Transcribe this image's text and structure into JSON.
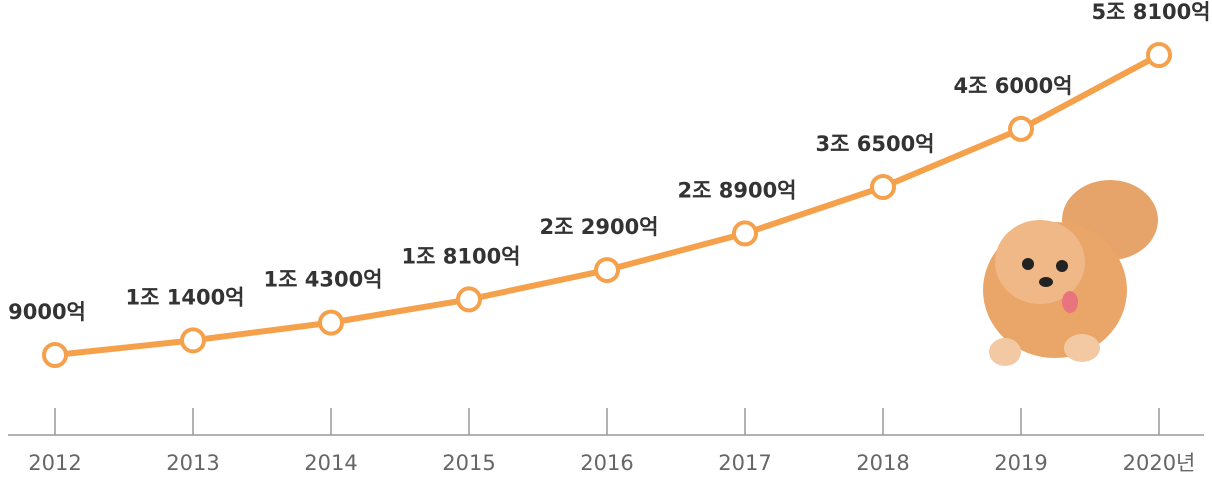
{
  "chart_data": {
    "type": "line",
    "categories": [
      "2012",
      "2013",
      "2014",
      "2015",
      "2016",
      "2017",
      "2018",
      "2019",
      "2020년"
    ],
    "values": [
      9000,
      11400,
      14300,
      18100,
      22900,
      28900,
      36500,
      46000,
      58100
    ],
    "value_labels": [
      "9000억",
      "1조 1400억",
      "1조 4300억",
      "1조 8100억",
      "2조 2900억",
      "2조 8900억",
      "3조 6500억",
      "4조 6000억",
      "5조 8100억"
    ],
    "color": "#f5a04b"
  }
}
